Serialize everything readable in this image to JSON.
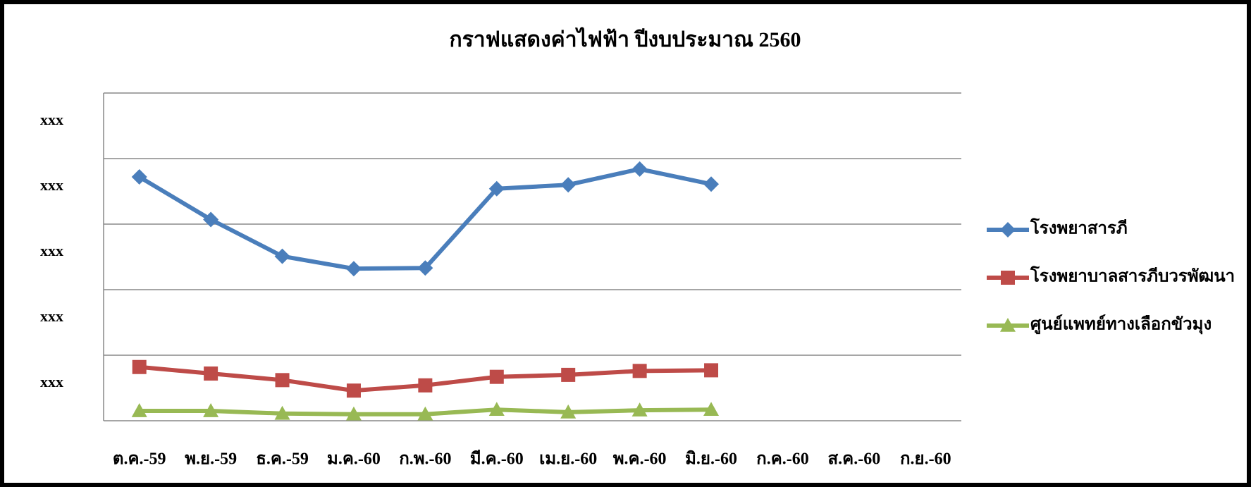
{
  "chart_data": {
    "type": "line",
    "title": "กราฟแสดงค่าไฟฟ้า ปีงบประมาณ 2560",
    "categories": [
      "ต.ค.-59",
      "พ.ย.-59",
      "ธ.ค.-59",
      "ม.ค.-60",
      "ก.พ.-60",
      "มี.ค.-60",
      "เม.ย.-60",
      "พ.ค.-60",
      "มิ.ย.-60",
      "ก.ค.-60",
      "ส.ค.-60",
      "ก.ย.-60"
    ],
    "series": [
      {
        "name": "โรงพยาสารภี",
        "color": "#4a7ebb",
        "marker": "diamond",
        "values": [
          3.72,
          3.07,
          2.51,
          2.32,
          2.33,
          3.54,
          3.6,
          3.84,
          3.61,
          null,
          null,
          null
        ]
      },
      {
        "name": "โรงพยาบาลสารภีบวรพัฒนา",
        "color": "#be4b48",
        "marker": "square",
        "values": [
          0.82,
          0.72,
          0.62,
          0.46,
          0.54,
          0.67,
          0.7,
          0.76,
          0.77,
          null,
          null,
          null
        ]
      },
      {
        "name": "ศูนย์แพทย์ทางเลือกขัวมุง",
        "color": "#98b954",
        "marker": "triangle",
        "values": [
          0.15,
          0.15,
          0.11,
          0.1,
          0.1,
          0.17,
          0.13,
          0.16,
          0.17,
          null,
          null,
          null
        ]
      }
    ],
    "ylim": [
      0,
      5
    ],
    "yticks": [
      {
        "value": 1,
        "label": "xxx"
      },
      {
        "value": 2,
        "label": "xxx"
      },
      {
        "value": 3,
        "label": "xxx"
      },
      {
        "value": 4,
        "label": "xxx"
      },
      {
        "value": 5,
        "label": "xxx"
      }
    ],
    "grid": true,
    "legend": "right"
  }
}
